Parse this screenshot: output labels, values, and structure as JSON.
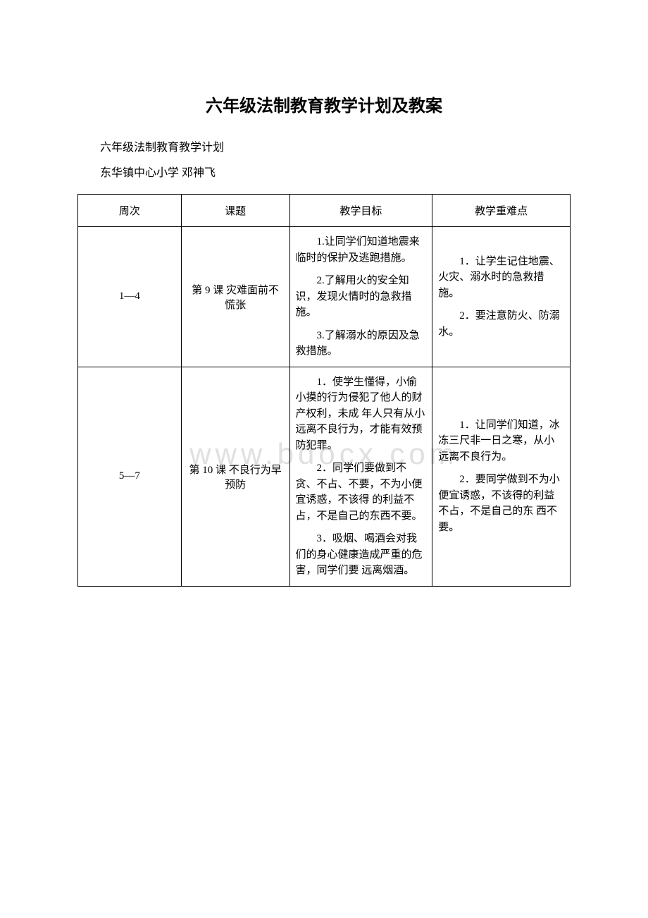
{
  "title": "六年级法制教育教学计划及教案",
  "subtitle": "六年级法制教育教学计划",
  "author": "东华镇中心小学 邓神飞",
  "watermark": "www.bdocx.com",
  "table": {
    "columns": [
      "周次",
      "课题",
      "教学目标",
      "教学重难点"
    ],
    "rows": [
      {
        "week": "1—4",
        "topic": "第 9 课 灾难面前不慌张",
        "objective_p1": "1.让同学们知道地震来临时的保护及逃跑措施。",
        "objective_p2": "2.了解用火的安全知识，发现火情时的急救措施。",
        "objective_p3": "3.了解溺水的原因及急救措施。",
        "difficulty_p1": "1．让学生记住地震、火灾、溺水时的急救措施。",
        "difficulty_p2": "2．要注意防火、防溺水。"
      },
      {
        "week": "5—7",
        "topic": "第 10 课 不良行为早预防",
        "objective_p1": "1．使学生懂得，小偷小摸的行为侵犯了他人的财产权利，未成 年人只有从小远离不良行为，才能有效预防犯罪。",
        "objective_p2": "2．同学们要做到不贪、不占、不要，不为小便宜诱惑，不该得 的利益不占，不是自己的东西不要。",
        "objective_p3": "3．吸烟、喝酒会对我们的身心健康造成严重的危害，同学们要 远离烟酒。",
        "difficulty_p1": "1．让同学们知道，冰冻三尺非一日之寒，从小远离不良行为。",
        "difficulty_p2": "2．要同学做到不为小便宜诱惑，不该得的利益不占，不是自己的东 西不要。"
      }
    ]
  },
  "styling": {
    "background_color": "#ffffff",
    "border_color": "#000000",
    "title_fontsize": 24,
    "body_fontsize": 15,
    "watermark_color": "#e0e0e0",
    "font_family": "SimSun"
  }
}
